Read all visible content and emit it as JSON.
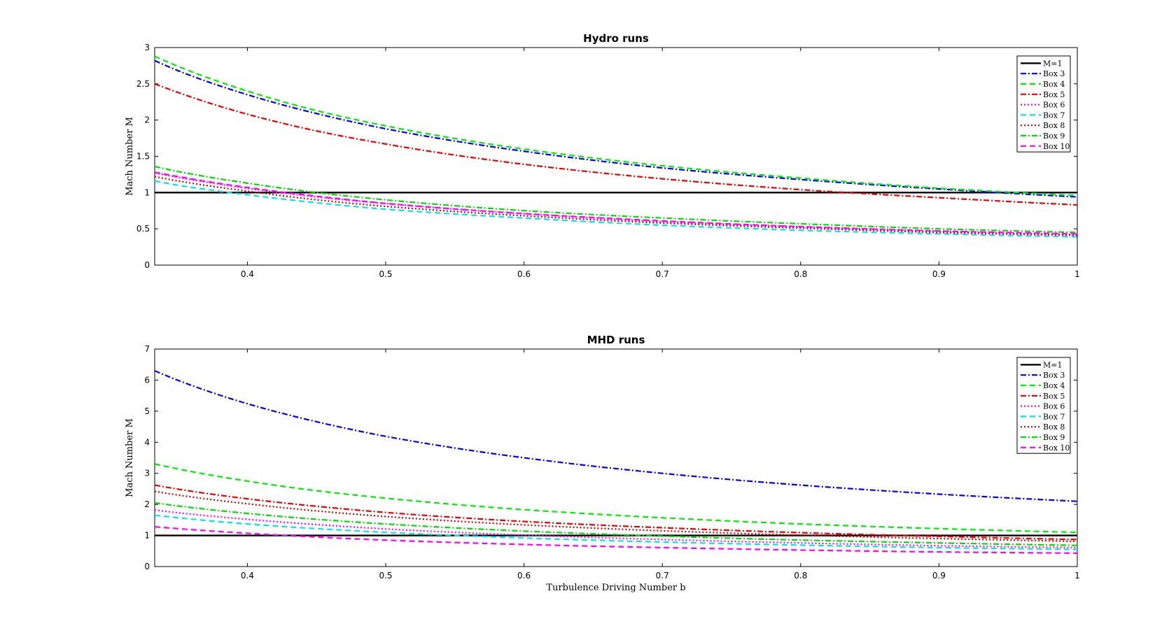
{
  "chart_data": [
    {
      "type": "line",
      "title": "Hydro runs",
      "xlabel": "",
      "ylabel": "Mach Number M",
      "xlim": [
        0.333,
        1
      ],
      "ylim": [
        0,
        3
      ],
      "xticks": [
        "0.4",
        "0.5",
        "0.6",
        "0.7",
        "0.8",
        "0.9",
        "1"
      ],
      "yticks": [
        "0",
        "0.5",
        "1",
        "1.5",
        "2",
        "2.5",
        "3"
      ],
      "legend_position": "top-right",
      "x": [
        0.333,
        0.35,
        0.4,
        0.45,
        0.5,
        0.6,
        0.7,
        0.8,
        0.9,
        1.0
      ],
      "series": [
        {
          "name": "M=1",
          "color": "#000000",
          "style": "solid",
          "values": [
            1,
            1,
            1,
            1,
            1,
            1,
            1,
            1,
            1,
            1
          ]
        },
        {
          "name": "Box 3",
          "color": "#0000ff",
          "style": "dashdot",
          "values": [
            2.82,
            2.68,
            2.35,
            2.09,
            1.88,
            1.57,
            1.34,
            1.18,
            1.05,
            0.94
          ]
        },
        {
          "name": "Box 4",
          "color": "#00ee00",
          "style": "dashed",
          "values": [
            2.88,
            2.74,
            2.4,
            2.13,
            1.92,
            1.6,
            1.37,
            1.2,
            1.06,
            0.96
          ]
        },
        {
          "name": "Box 5",
          "color": "#ee0000",
          "style": "dashdot",
          "values": [
            2.5,
            2.38,
            2.08,
            1.85,
            1.67,
            1.39,
            1.19,
            1.04,
            0.93,
            0.83
          ]
        },
        {
          "name": "Box 6",
          "color": "#ff00ff",
          "style": "dotted",
          "values": [
            1.27,
            1.21,
            1.06,
            0.94,
            0.85,
            0.71,
            0.6,
            0.53,
            0.47,
            0.42
          ]
        },
        {
          "name": "Box 7",
          "color": "#00e5ee",
          "style": "dashed",
          "values": [
            1.16,
            1.1,
            0.97,
            0.86,
            0.77,
            0.65,
            0.55,
            0.48,
            0.43,
            0.39
          ]
        },
        {
          "name": "Box 8",
          "color": "#cc0000",
          "style": "dotted",
          "values": [
            1.22,
            1.16,
            1.02,
            0.9,
            0.81,
            0.68,
            0.58,
            0.51,
            0.45,
            0.41
          ]
        },
        {
          "name": "Box 9",
          "color": "#00dd00",
          "style": "dashdot",
          "values": [
            1.36,
            1.29,
            1.13,
            1.0,
            0.9,
            0.75,
            0.65,
            0.57,
            0.5,
            0.45
          ]
        },
        {
          "name": "Box 10",
          "color": "#ff00ff",
          "style": "dashed",
          "values": [
            1.28,
            1.22,
            1.07,
            0.95,
            0.85,
            0.71,
            0.61,
            0.53,
            0.47,
            0.43
          ]
        }
      ]
    },
    {
      "type": "line",
      "title": "MHD runs",
      "xlabel": "Turbulence Driving Number b",
      "ylabel": "Mach Number M",
      "xlim": [
        0.333,
        1
      ],
      "ylim": [
        0,
        7
      ],
      "xticks": [
        "0.4",
        "0.5",
        "0.6",
        "0.7",
        "0.8",
        "0.9",
        "1"
      ],
      "yticks": [
        "0",
        "1",
        "2",
        "3",
        "4",
        "5",
        "6",
        "7"
      ],
      "legend_position": "top-right",
      "x": [
        0.333,
        0.35,
        0.4,
        0.45,
        0.5,
        0.6,
        0.7,
        0.8,
        0.9,
        1.0
      ],
      "series": [
        {
          "name": "M=1",
          "color": "#000000",
          "style": "solid",
          "values": [
            1,
            1,
            1,
            1,
            1,
            1,
            1,
            1,
            1,
            1
          ]
        },
        {
          "name": "Box 3",
          "color": "#0000ff",
          "style": "dashdot",
          "values": [
            6.3,
            5.99,
            5.24,
            4.66,
            4.19,
            3.5,
            3.0,
            2.62,
            2.33,
            2.1
          ]
        },
        {
          "name": "Box 4",
          "color": "#00ee00",
          "style": "dashed",
          "values": [
            3.3,
            3.14,
            2.75,
            2.44,
            2.2,
            1.83,
            1.57,
            1.37,
            1.22,
            1.1
          ]
        },
        {
          "name": "Box 5",
          "color": "#ee0000",
          "style": "dashdot",
          "values": [
            2.62,
            2.49,
            2.18,
            1.94,
            1.74,
            1.45,
            1.25,
            1.09,
            0.97,
            0.87
          ]
        },
        {
          "name": "Box 6",
          "color": "#ff00ff",
          "style": "dotted",
          "values": [
            1.82,
            1.73,
            1.52,
            1.35,
            1.21,
            1.01,
            0.87,
            0.76,
            0.67,
            0.61
          ]
        },
        {
          "name": "Box 7",
          "color": "#00e5ee",
          "style": "dashed",
          "values": [
            1.65,
            1.57,
            1.37,
            1.22,
            1.1,
            0.92,
            0.79,
            0.69,
            0.61,
            0.55
          ]
        },
        {
          "name": "Box 8",
          "color": "#cc0000",
          "style": "dotted",
          "values": [
            2.42,
            2.3,
            2.02,
            1.79,
            1.61,
            1.34,
            1.15,
            1.01,
            0.9,
            0.81
          ]
        },
        {
          "name": "Box 9",
          "color": "#00dd00",
          "style": "dashdot",
          "values": [
            2.05,
            1.95,
            1.71,
            1.52,
            1.37,
            1.14,
            0.98,
            0.85,
            0.76,
            0.68
          ]
        },
        {
          "name": "Box 10",
          "color": "#ff00ff",
          "style": "dashed",
          "values": [
            1.28,
            1.22,
            1.07,
            0.95,
            0.85,
            0.71,
            0.61,
            0.53,
            0.47,
            0.43
          ]
        }
      ]
    }
  ]
}
